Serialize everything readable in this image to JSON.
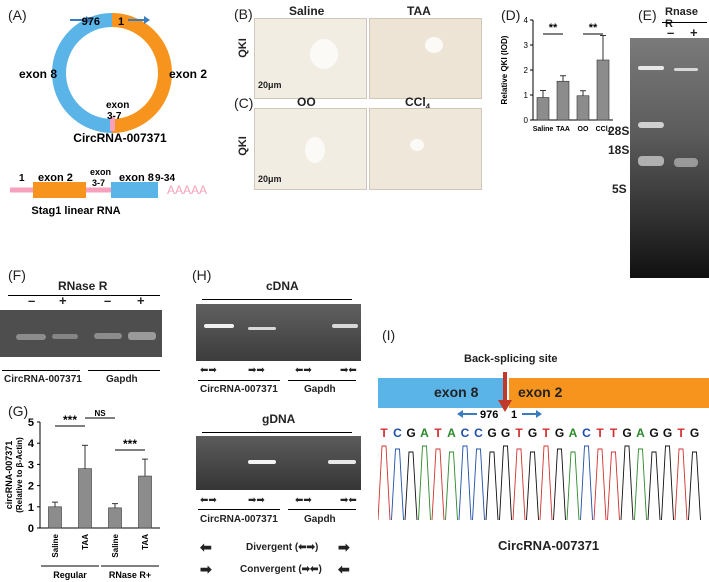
{
  "figure": {
    "panel_labels": [
      "(A)",
      "(B)",
      "(C)",
      "(D)",
      "(E)",
      "(F)",
      "(G)",
      "(H)",
      "(I)"
    ],
    "panelA": {
      "pos_976": "976",
      "pos_1": "1",
      "exon8": "exon 8",
      "exon2": "exon 2",
      "exon37": "exon\n3-7",
      "circ_name": "CircRNA-007371",
      "linear_1": "1",
      "linear_exon2": "exon 2",
      "linear_exon37": "exon\n3-7",
      "linear_exon8": "exon 8",
      "linear_934": "9-34",
      "poly_a": "AAAAA",
      "linear_name": "Stag1 linear RNA",
      "colors": {
        "orange": "#f7941d",
        "blue": "#5ab4e8",
        "pink": "#f7a1bd",
        "arrow": "#3a7cc2"
      }
    },
    "panelB": {
      "saline": "Saline",
      "taa": "TAA",
      "ylabel": "QKI",
      "scale": "20μm"
    },
    "panelC": {
      "oo": "OO",
      "ccl4": "CCl",
      "ccl4_sub": "4",
      "ylabel": "QKI",
      "scale": "20μm"
    },
    "panelE": {
      "title": "Rnase R",
      "minus": "–",
      "plus": "+",
      "m28s": "28S",
      "m18s": "18S",
      "m5s": "5S"
    },
    "panelF": {
      "title": "RNase R",
      "minus1": "–",
      "plus1": "+",
      "minus2": "–",
      "plus2": "+",
      "left": "CircRNA-007371",
      "right": "Gapdh"
    },
    "panelH": {
      "cdna": "cDNA",
      "gdna": "gDNA",
      "left1": "CircRNA-007371",
      "right1": "Gapdh",
      "left2": "CircRNA-007371",
      "right2": "Gapdh",
      "divergent": "Divergent (",
      "divergent_end": ")",
      "convergent": "Convergent (",
      "convergent_end": ")"
    },
    "panelI": {
      "title": "Back-splicing site",
      "exon8": "exon 8",
      "exon2": "exon 2",
      "pos976": "976",
      "pos1": "1",
      "sequence": [
        "T",
        "C",
        "G",
        "A",
        "T",
        "A",
        "C",
        "C",
        "G",
        "G",
        "T",
        "G",
        "T",
        "G",
        "A",
        "C",
        "T",
        "T",
        "G",
        "A",
        "G",
        "G",
        "T",
        "G"
      ],
      "name": "CircRNA-007371",
      "base_colors": {
        "A": "#2a8a2a",
        "C": "#1e4fa8",
        "G": "#111111",
        "T": "#d23030"
      }
    }
  },
  "chart_data": [
    {
      "type": "bar",
      "id": "D",
      "categories": [
        "Saline",
        "TAA",
        "OO",
        "CCl4"
      ],
      "values": [
        0.9,
        1.55,
        0.97,
        2.4
      ],
      "errors": [
        0.28,
        0.22,
        0.2,
        0.98
      ],
      "ylabel": "Relative QKI (IOD)",
      "ylim": [
        0,
        4
      ],
      "yticks": [
        0,
        1,
        2,
        3,
        4
      ],
      "significance": [
        {
          "pair": [
            "Saline",
            "TAA"
          ],
          "label": "**"
        },
        {
          "pair": [
            "OO",
            "CCl4"
          ],
          "label": "**"
        }
      ],
      "bar_color": "#8c8c8c"
    },
    {
      "type": "bar",
      "id": "G",
      "categories": [
        "Saline",
        "TAA",
        "Saline",
        "TAA"
      ],
      "values": [
        1.0,
        2.8,
        0.95,
        2.45
      ],
      "errors": [
        0.22,
        1.1,
        0.2,
        0.8
      ],
      "ylabel": "circRNA-007371\n(Relative to β-Actin)",
      "ylim": [
        0,
        5
      ],
      "yticks": [
        0,
        1,
        2,
        3,
        4,
        5
      ],
      "groups": [
        {
          "label": "Regular",
          "span": [
            0,
            1
          ]
        },
        {
          "label": "RNase R+",
          "span": [
            2,
            3
          ]
        }
      ],
      "significance": [
        {
          "pair": [
            0,
            1
          ],
          "label": "***"
        },
        {
          "pair": [
            1,
            2
          ],
          "label": "NS"
        },
        {
          "pair": [
            2,
            3
          ],
          "label": "***"
        }
      ],
      "bar_color": "#8c8c8c"
    }
  ]
}
